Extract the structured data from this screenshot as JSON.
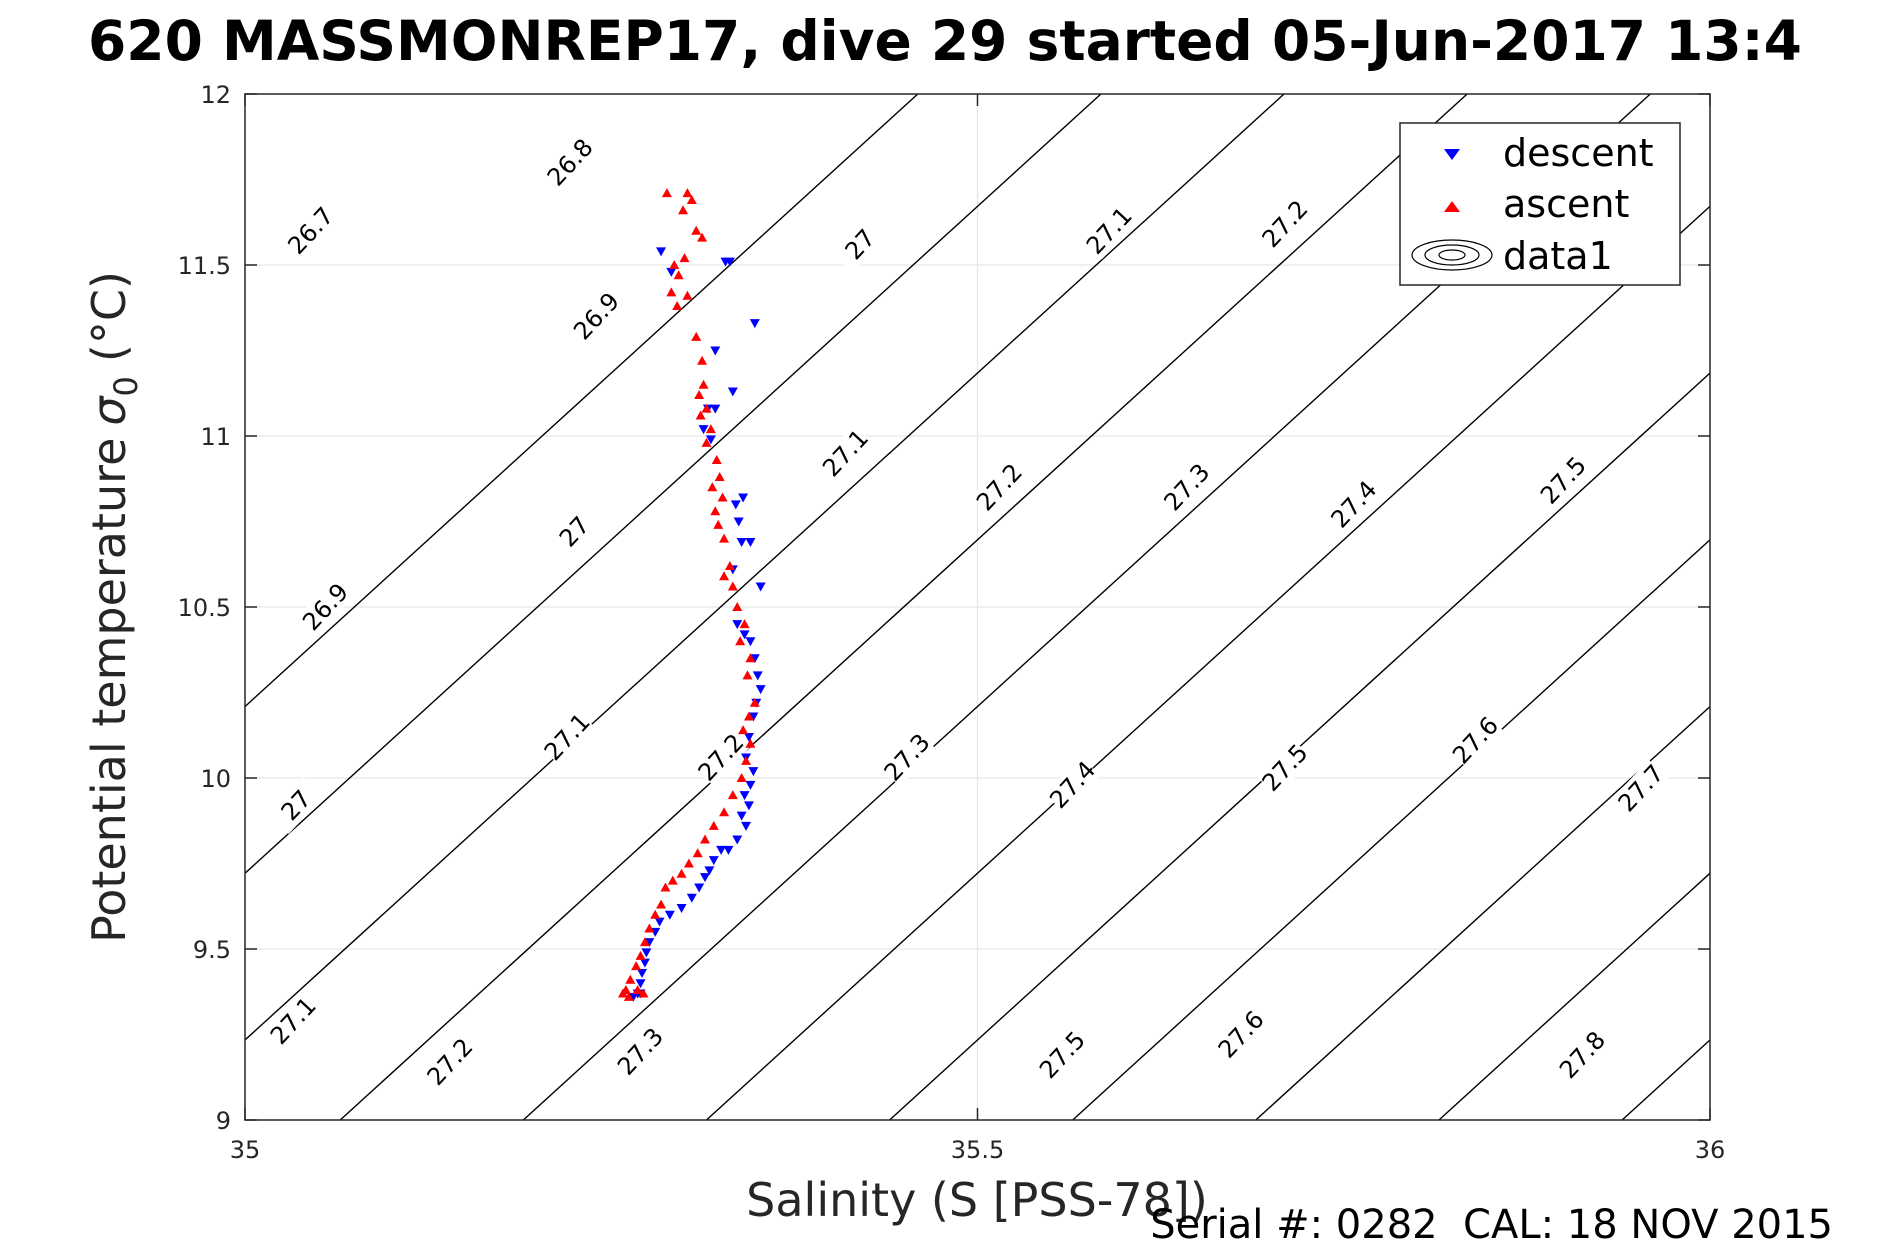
{
  "chart_data": {
    "type": "scatter",
    "title": "620 MASSMONREP17, dive 29 started 05-Jun-2017 13:4",
    "xlabel": "Salinity (S [PSS-78])",
    "ylabel": "Potential temperature σ₀ (°C)",
    "ylabel_main": "Potential temperature",
    "ylabel_sigma": "σ",
    "ylabel_sub": "0",
    "ylabel_unit": "(°C)",
    "xlim": [
      35,
      36
    ],
    "ylim": [
      9,
      12
    ],
    "xticks": [
      35,
      35.5,
      36
    ],
    "xtick_labels": [
      "35",
      "35.5",
      "36"
    ],
    "yticks": [
      9,
      9.5,
      10,
      10.5,
      11,
      11.5,
      12
    ],
    "ytick_labels": [
      "9",
      "9.5",
      "10",
      "10.5",
      "11",
      "11.5",
      "12"
    ],
    "grid": true,
    "legend_position": "top-right",
    "legend": [
      "descent",
      "ascent",
      "data1"
    ],
    "series": [
      {
        "name": "descent",
        "marker": "triangle-down",
        "color": "#0000ff",
        "points": [
          [
            35.284,
            11.54
          ],
          [
            35.291,
            11.48
          ],
          [
            35.331,
            11.51
          ],
          [
            35.328,
            11.51
          ],
          [
            35.348,
            11.33
          ],
          [
            35.321,
            11.25
          ],
          [
            35.333,
            11.13
          ],
          [
            35.321,
            11.08
          ],
          [
            35.316,
            11.08
          ],
          [
            35.313,
            11.02
          ],
          [
            35.318,
            10.99
          ],
          [
            35.34,
            10.82
          ],
          [
            35.335,
            10.8
          ],
          [
            35.337,
            10.75
          ],
          [
            35.339,
            10.69
          ],
          [
            35.345,
            10.69
          ],
          [
            35.352,
            10.56
          ],
          [
            35.333,
            10.61
          ],
          [
            35.336,
            10.45
          ],
          [
            35.341,
            10.42
          ],
          [
            35.345,
            10.4
          ],
          [
            35.348,
            10.35
          ],
          [
            35.35,
            10.3
          ],
          [
            35.352,
            10.26
          ],
          [
            35.349,
            10.22
          ],
          [
            35.347,
            10.18
          ],
          [
            35.344,
            10.12
          ],
          [
            35.342,
            10.06
          ],
          [
            35.347,
            10.02
          ],
          [
            35.345,
            9.98
          ],
          [
            35.341,
            9.95
          ],
          [
            35.344,
            9.92
          ],
          [
            35.339,
            9.89
          ],
          [
            35.342,
            9.86
          ],
          [
            35.336,
            9.82
          ],
          [
            35.33,
            9.79
          ],
          [
            35.325,
            9.79
          ],
          [
            35.32,
            9.76
          ],
          [
            35.317,
            9.73
          ],
          [
            35.314,
            9.71
          ],
          [
            35.31,
            9.68
          ],
          [
            35.305,
            9.65
          ],
          [
            35.298,
            9.62
          ],
          [
            35.29,
            9.6
          ],
          [
            35.283,
            9.58
          ],
          [
            35.28,
            9.55
          ],
          [
            35.276,
            9.52
          ],
          [
            35.274,
            9.49
          ],
          [
            35.273,
            9.46
          ],
          [
            35.271,
            9.43
          ],
          [
            35.27,
            9.4
          ],
          [
            35.268,
            9.37
          ],
          [
            35.265,
            9.36
          ],
          [
            35.27,
            9.37
          ]
        ]
      },
      {
        "name": "ascent",
        "marker": "triangle-up",
        "color": "#ff0000",
        "points": [
          [
            35.288,
            11.71
          ],
          [
            35.302,
            11.71
          ],
          [
            35.305,
            11.69
          ],
          [
            35.299,
            11.66
          ],
          [
            35.308,
            11.6
          ],
          [
            35.312,
            11.58
          ],
          [
            35.3,
            11.52
          ],
          [
            35.293,
            11.5
          ],
          [
            35.296,
            11.47
          ],
          [
            35.291,
            11.42
          ],
          [
            35.295,
            11.38
          ],
          [
            35.302,
            11.41
          ],
          [
            35.308,
            11.29
          ],
          [
            35.312,
            11.22
          ],
          [
            35.313,
            11.15
          ],
          [
            35.31,
            11.12
          ],
          [
            35.315,
            11.08
          ],
          [
            35.311,
            11.06
          ],
          [
            35.318,
            11.02
          ],
          [
            35.315,
            10.98
          ],
          [
            35.322,
            10.93
          ],
          [
            35.324,
            10.88
          ],
          [
            35.319,
            10.85
          ],
          [
            35.326,
            10.82
          ],
          [
            35.321,
            10.78
          ],
          [
            35.323,
            10.74
          ],
          [
            35.327,
            10.7
          ],
          [
            35.331,
            10.62
          ],
          [
            35.327,
            10.59
          ],
          [
            35.333,
            10.56
          ],
          [
            35.336,
            10.5
          ],
          [
            35.341,
            10.45
          ],
          [
            35.338,
            10.4
          ],
          [
            35.345,
            10.35
          ],
          [
            35.343,
            10.3
          ],
          [
            35.348,
            10.22
          ],
          [
            35.344,
            10.18
          ],
          [
            35.34,
            10.14
          ],
          [
            35.345,
            10.1
          ],
          [
            35.342,
            10.05
          ],
          [
            35.339,
            10.0
          ],
          [
            35.333,
            9.95
          ],
          [
            35.327,
            9.9
          ],
          [
            35.32,
            9.86
          ],
          [
            35.314,
            9.82
          ],
          [
            35.309,
            9.78
          ],
          [
            35.303,
            9.75
          ],
          [
            35.298,
            9.72
          ],
          [
            35.292,
            9.7
          ],
          [
            35.287,
            9.68
          ],
          [
            35.284,
            9.63
          ],
          [
            35.28,
            9.6
          ],
          [
            35.276,
            9.56
          ],
          [
            35.273,
            9.52
          ],
          [
            35.27,
            9.48
          ],
          [
            35.267,
            9.45
          ],
          [
            35.263,
            9.41
          ],
          [
            35.26,
            9.38
          ],
          [
            35.258,
            9.37
          ],
          [
            35.262,
            9.36
          ],
          [
            35.268,
            9.38
          ],
          [
            35.272,
            9.37
          ]
        ]
      }
    ],
    "contours": [
      {
        "level": "26.7",
        "label_at": [
          35.045,
          11.6
        ]
      },
      {
        "level": "26.8",
        "label_at": [
          35.222,
          11.8
        ]
      },
      {
        "level": "26.9",
        "label_at": [
          35.24,
          11.35
        ]
      },
      {
        "level": "27",
        "label_at": [
          35.42,
          11.56
        ]
      },
      {
        "level": "27.1",
        "label_at": [
          35.59,
          11.6
        ]
      },
      {
        "level": "27.2",
        "label_at": [
          35.71,
          11.62
        ]
      },
      {
        "level": "27.1",
        "label_at": [
          35.41,
          10.95
        ]
      },
      {
        "level": "27",
        "label_at": [
          35.225,
          10.72
        ]
      },
      {
        "level": "26.9",
        "label_at": [
          35.055,
          10.5
        ]
      },
      {
        "level": "27.2",
        "label_at": [
          35.515,
          10.85
        ]
      },
      {
        "level": "27.3",
        "label_at": [
          35.643,
          10.85
        ]
      },
      {
        "level": "27.4",
        "label_at": [
          35.757,
          10.8
        ]
      },
      {
        "level": "27.5",
        "label_at": [
          35.9,
          10.87
        ]
      },
      {
        "level": "27.1",
        "label_at": [
          35.22,
          10.12
        ]
      },
      {
        "level": "27",
        "label_at": [
          35.035,
          9.92
        ]
      },
      {
        "level": "27.2",
        "label_at": [
          35.325,
          10.06
        ]
      },
      {
        "level": "27.3",
        "label_at": [
          35.452,
          10.06
        ]
      },
      {
        "level": "27.4",
        "label_at": [
          35.565,
          9.98
        ]
      },
      {
        "level": "27.5",
        "label_at": [
          35.71,
          10.03
        ]
      },
      {
        "level": "27.6",
        "label_at": [
          35.84,
          10.11
        ]
      },
      {
        "level": "27.7",
        "label_at": [
          35.953,
          9.97
        ]
      },
      {
        "level": "27.1",
        "label_at": [
          35.033,
          9.29
        ]
      },
      {
        "level": "27.2",
        "label_at": [
          35.14,
          9.17
        ]
      },
      {
        "level": "27.3",
        "label_at": [
          35.27,
          9.2
        ]
      },
      {
        "level": "27.5",
        "label_at": [
          35.558,
          9.19
        ]
      },
      {
        "level": "27.6",
        "label_at": [
          35.68,
          9.25
        ]
      },
      {
        "level": "27.8",
        "label_at": [
          35.913,
          9.19
        ]
      }
    ]
  },
  "footer_text": "Serial #: 0282  CAL: 18 NOV 2015",
  "colors": {
    "descent": "#0000ff",
    "ascent": "#ff0000",
    "grid": "#e6e6e6",
    "axis": "#262626",
    "contour": "#000000"
  }
}
